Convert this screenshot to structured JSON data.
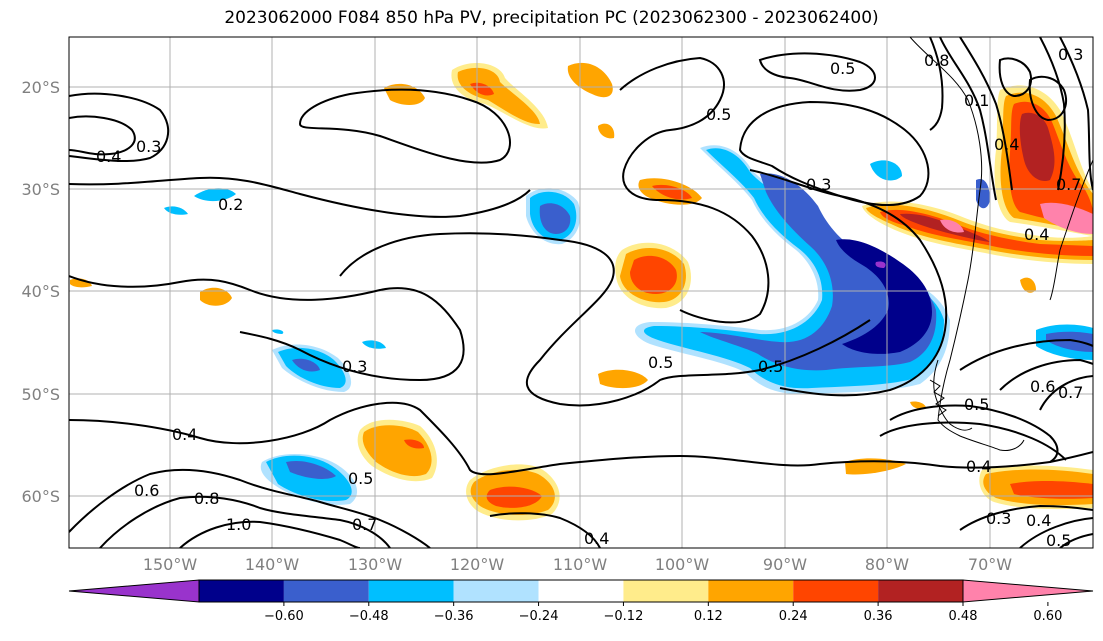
{
  "title": "2023062000 F084 850 hPa PV, precipitation PC (2023062300 - 2023062400)",
  "map": {
    "lat_labels": [
      "20°S",
      "30°S",
      "40°S",
      "50°S",
      "60°S"
    ],
    "lon_labels": [
      "150°W",
      "140°W",
      "130°W",
      "120°W",
      "110°W",
      "100°W",
      "90°W",
      "80°W",
      "70°W"
    ],
    "contour_labels": [
      "0.4",
      "0.3",
      "0.2",
      "0.3",
      "0.5",
      "0.3",
      "0.5",
      "0.4",
      "0.6",
      "0.8",
      "1.0",
      "0.5",
      "0.7",
      "0.4",
      "0.5",
      "0.4",
      "0.3",
      "0.4",
      "0.5",
      "0.6",
      "0.7",
      "0.5",
      "0.8",
      "0.1",
      "0.4",
      "0.7",
      "0.4",
      "0.5",
      "0.3"
    ],
    "shading_palette": {
      "lt_-0.60": "#9933cc",
      "-0.60_-0.48": "#00008b",
      "-0.48_-0.36": "#3a5fcd",
      "-0.36_-0.24": "#00bfff",
      "-0.24_-0.12": "#b0e2ff",
      "-0.12_0.12": "#ffffff",
      "0.12_0.24": "#ffec8b",
      "0.24_0.36": "#ffa500",
      "0.36_0.48": "#ff4500",
      "0.48_0.60": "#b22222",
      "gt_0.60": "#ff82ab"
    }
  },
  "colorbar": {
    "ticks": [
      "−0.60",
      "−0.48",
      "−0.36",
      "−0.24",
      "−0.12",
      "0.12",
      "0.24",
      "0.36",
      "0.48",
      "0.60"
    ],
    "colors": [
      "#9933cc",
      "#00008b",
      "#3a5fcd",
      "#00bfff",
      "#b0e2ff",
      "#ffffff",
      "#ffec8b",
      "#ffa500",
      "#ff4500",
      "#b22222",
      "#ff82ab"
    ]
  }
}
